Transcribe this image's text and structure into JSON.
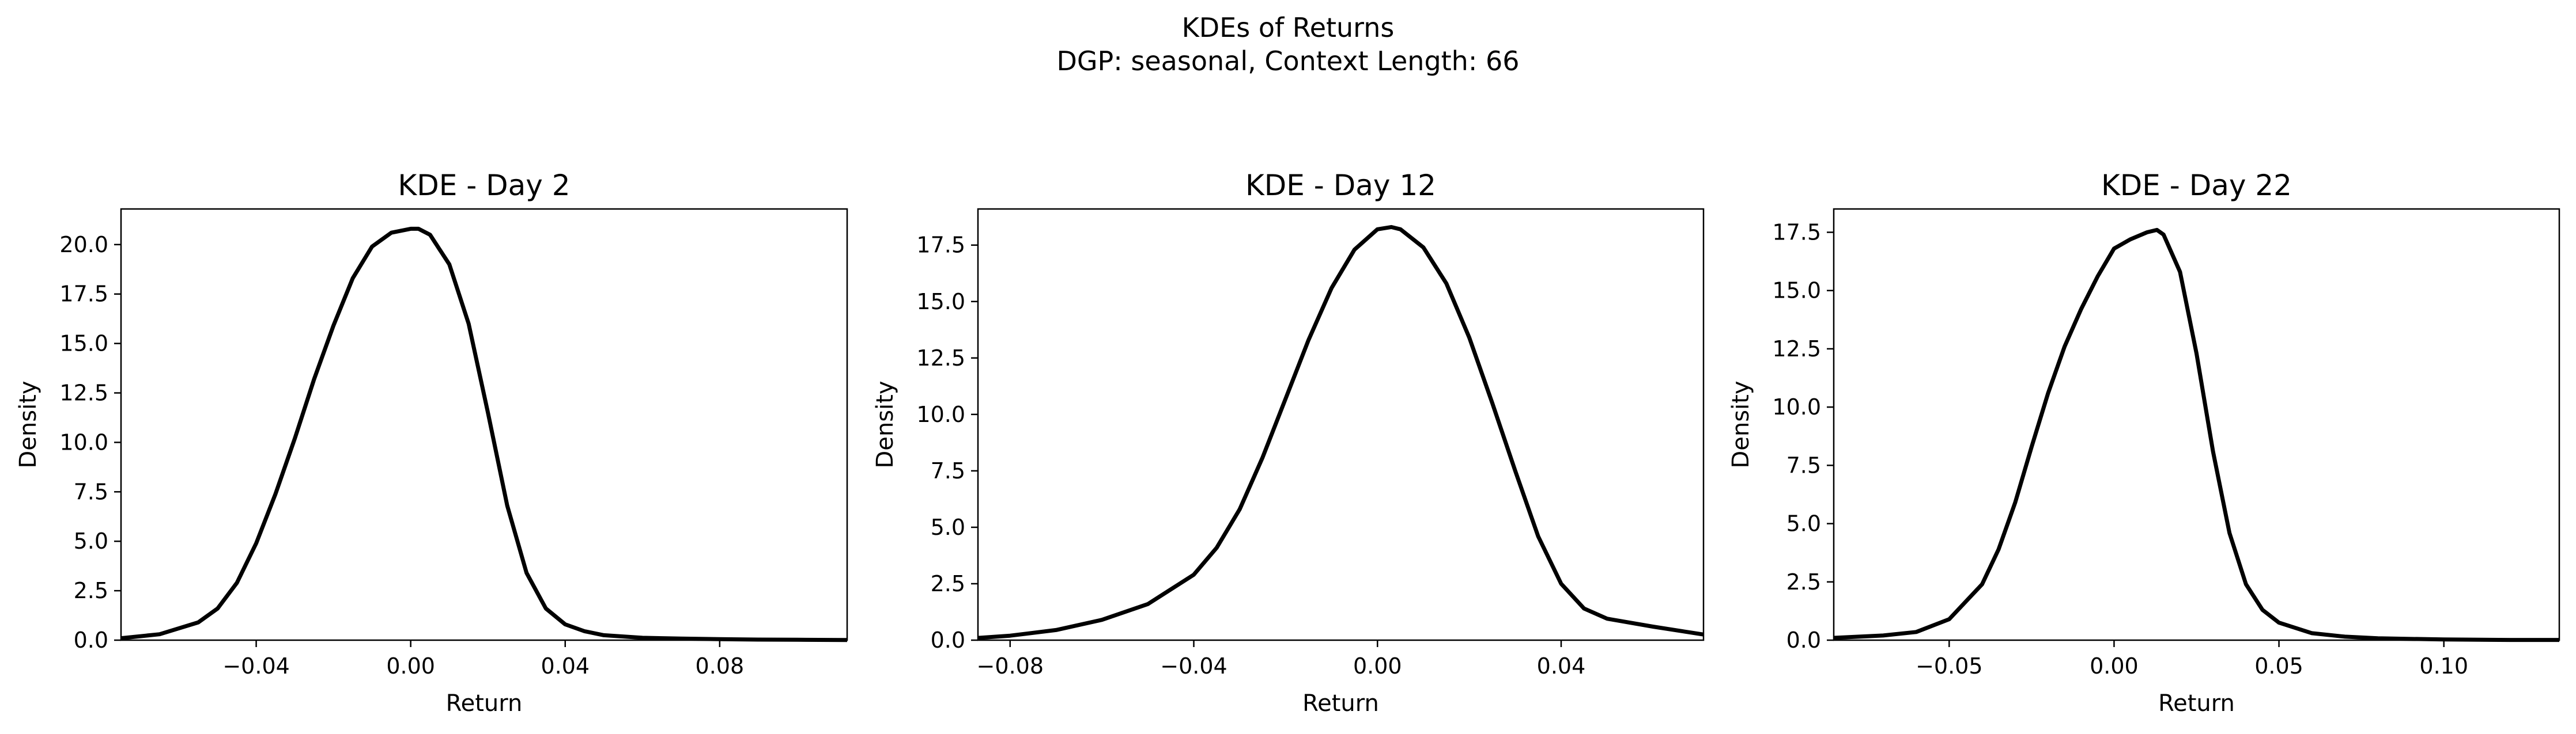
{
  "figure": {
    "title_line1": "KDEs of Returns",
    "title_line2": "DGP: seasonal, Context Length: 66"
  },
  "chart_data": [
    {
      "type": "line",
      "title": "KDE - Day 2",
      "xlabel": "Return",
      "ylabel": "Density",
      "xlim": [
        -0.075,
        0.113
      ],
      "ylim": [
        0,
        21.8
      ],
      "xticks": [
        -0.04,
        0.0,
        0.04,
        0.08
      ],
      "xtick_labels": [
        "−0.04",
        "0.00",
        "0.04",
        "0.08"
      ],
      "yticks": [
        0,
        2.5,
        5,
        7.5,
        10,
        12.5,
        15,
        17.5,
        20
      ],
      "ytick_labels": [
        "0.0",
        "2.5",
        "5.0",
        "7.5",
        "10.0",
        "12.5",
        "15.0",
        "17.5",
        "20.0"
      ],
      "grid": false,
      "color": "#000000",
      "x": [
        -0.075,
        -0.065,
        -0.055,
        -0.05,
        -0.045,
        -0.04,
        -0.035,
        -0.03,
        -0.025,
        -0.02,
        -0.015,
        -0.01,
        -0.005,
        0.0,
        0.002,
        0.005,
        0.01,
        0.015,
        0.02,
        0.025,
        0.03,
        0.035,
        0.04,
        0.045,
        0.05,
        0.06,
        0.07,
        0.08,
        0.09,
        0.1,
        0.113
      ],
      "y": [
        0.1,
        0.3,
        0.9,
        1.6,
        2.9,
        4.9,
        7.4,
        10.2,
        13.2,
        15.9,
        18.3,
        19.9,
        20.6,
        20.8,
        20.8,
        20.5,
        19.0,
        16.0,
        11.5,
        6.8,
        3.4,
        1.6,
        0.8,
        0.45,
        0.25,
        0.12,
        0.08,
        0.05,
        0.03,
        0.02,
        0.01
      ]
    },
    {
      "type": "line",
      "title": "KDE - Day 12",
      "xlabel": "Return",
      "ylabel": "Density",
      "xlim": [
        -0.087,
        0.071
      ],
      "ylim": [
        0,
        19.1
      ],
      "xticks": [
        -0.08,
        -0.04,
        0.0,
        0.04
      ],
      "xtick_labels": [
        "−0.08",
        "−0.04",
        "0.00",
        "0.04"
      ],
      "yticks": [
        0,
        2.5,
        5,
        7.5,
        10,
        12.5,
        15,
        17.5
      ],
      "ytick_labels": [
        "0.0",
        "2.5",
        "5.0",
        "7.5",
        "10.0",
        "12.5",
        "15.0",
        "17.5"
      ],
      "grid": false,
      "color": "#000000",
      "x": [
        -0.087,
        -0.08,
        -0.07,
        -0.06,
        -0.05,
        -0.04,
        -0.035,
        -0.03,
        -0.025,
        -0.02,
        -0.015,
        -0.01,
        -0.005,
        0.0,
        0.003,
        0.005,
        0.01,
        0.015,
        0.02,
        0.025,
        0.03,
        0.035,
        0.04,
        0.045,
        0.05,
        0.06,
        0.071
      ],
      "y": [
        0.1,
        0.2,
        0.45,
        0.9,
        1.6,
        2.9,
        4.1,
        5.8,
        8.1,
        10.7,
        13.3,
        15.6,
        17.3,
        18.2,
        18.3,
        18.2,
        17.4,
        15.8,
        13.4,
        10.5,
        7.5,
        4.6,
        2.5,
        1.4,
        0.95,
        0.6,
        0.25
      ]
    },
    {
      "type": "line",
      "title": "KDE - Day 22",
      "xlabel": "Return",
      "ylabel": "Density",
      "xlim": [
        -0.085,
        0.135
      ],
      "ylim": [
        0,
        18.5
      ],
      "xticks": [
        -0.05,
        0.0,
        0.05,
        0.1
      ],
      "xtick_labels": [
        "−0.05",
        "0.00",
        "0.05",
        "0.10"
      ],
      "yticks": [
        0,
        2.5,
        5,
        7.5,
        10,
        12.5,
        15,
        17.5
      ],
      "ytick_labels": [
        "0.0",
        "2.5",
        "5.0",
        "7.5",
        "10.0",
        "12.5",
        "15.0",
        "17.5"
      ],
      "grid": false,
      "color": "#000000",
      "x": [
        -0.085,
        -0.07,
        -0.06,
        -0.05,
        -0.04,
        -0.035,
        -0.03,
        -0.025,
        -0.02,
        -0.015,
        -0.01,
        -0.005,
        0.0,
        0.005,
        0.01,
        0.013,
        0.015,
        0.02,
        0.025,
        0.03,
        0.035,
        0.04,
        0.045,
        0.05,
        0.06,
        0.07,
        0.08,
        0.1,
        0.12,
        0.135
      ],
      "y": [
        0.1,
        0.2,
        0.35,
        0.9,
        2.4,
        3.9,
        5.9,
        8.3,
        10.6,
        12.6,
        14.2,
        15.6,
        16.8,
        17.2,
        17.5,
        17.6,
        17.4,
        15.8,
        12.3,
        8.1,
        4.6,
        2.4,
        1.3,
        0.75,
        0.3,
        0.15,
        0.08,
        0.03,
        0.01,
        0.01
      ]
    }
  ]
}
